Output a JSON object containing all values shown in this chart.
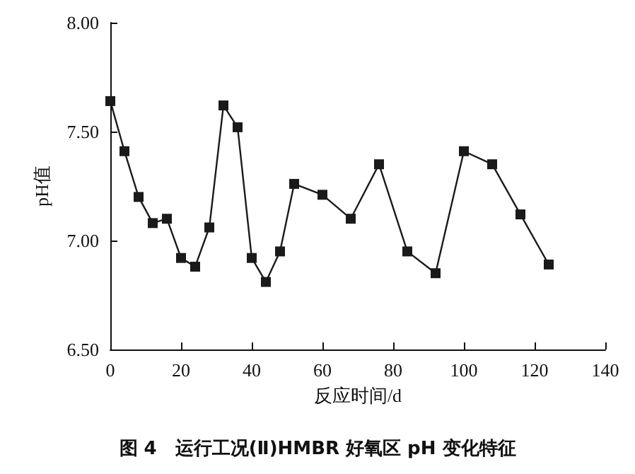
{
  "chart_data": {
    "type": "line",
    "title": "图 4　运行工况(Ⅱ)HMBR 好氧区 pH 变化特征",
    "xlabel": "反应时间/d",
    "ylabel": "pH值",
    "x": [
      0,
      4,
      8,
      12,
      16,
      20,
      24,
      28,
      32,
      36,
      40,
      44,
      48,
      52,
      60,
      68,
      76,
      84,
      92,
      100,
      108,
      116,
      124
    ],
    "series": [
      {
        "color": "#1a1a1a",
        "values": [
          7.64,
          7.41,
          7.2,
          7.08,
          7.1,
          6.92,
          6.88,
          7.06,
          7.62,
          7.52,
          6.92,
          6.81,
          6.95,
          7.26,
          7.21,
          7.1,
          7.35,
          6.95,
          6.85,
          7.41,
          7.35,
          7.12,
          6.89
        ]
      }
    ],
    "xlim": [
      0,
      140
    ],
    "xticks": [
      0,
      20,
      40,
      60,
      80,
      100,
      120,
      140
    ],
    "ylim": [
      6.5,
      8
    ],
    "yticks": [
      {
        "value": 6.5,
        "label": "6.50"
      },
      {
        "value": 7,
        "label": "7.00"
      },
      {
        "value": 7.5,
        "label": "7.50"
      },
      {
        "value": 8,
        "label": "8.00"
      }
    ],
    "marker": "square",
    "line_style": "solid"
  }
}
